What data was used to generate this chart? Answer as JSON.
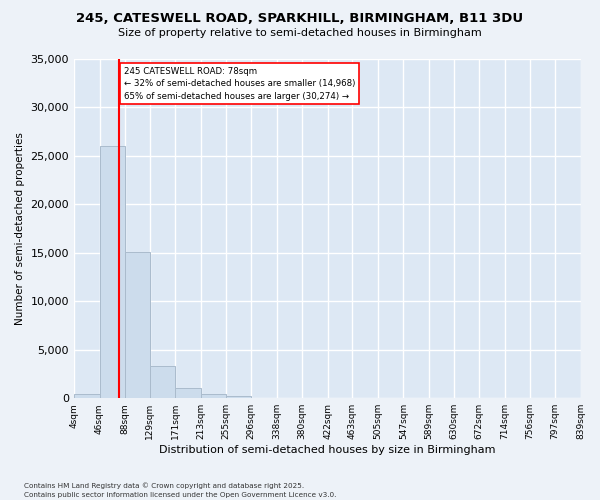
{
  "title_line1": "245, CATESWELL ROAD, SPARKHILL, BIRMINGHAM, B11 3DU",
  "title_line2": "Size of property relative to semi-detached houses in Birmingham",
  "xlabel": "Distribution of semi-detached houses by size in Birmingham",
  "ylabel": "Number of semi-detached properties",
  "bar_color": "#ccdcec",
  "bar_edge_color": "#aabbcc",
  "background_color": "#dde8f4",
  "grid_color": "#ffffff",
  "property_line_x": 78,
  "annotation_text_line1": "245 CATESWELL ROAD: 78sqm",
  "annotation_text_line2": "← 32% of semi-detached houses are smaller (14,968)",
  "annotation_text_line3": "65% of semi-detached houses are larger (30,274) →",
  "footnote1": "Contains HM Land Registry data © Crown copyright and database right 2025.",
  "footnote2": "Contains public sector information licensed under the Open Government Licence v3.0.",
  "bins": [
    4,
    46,
    88,
    129,
    171,
    213,
    255,
    296,
    338,
    380,
    422,
    463,
    505,
    547,
    589,
    630,
    672,
    714,
    756,
    797,
    839
  ],
  "bin_labels": [
    "4sqm",
    "46sqm",
    "88sqm",
    "129sqm",
    "171sqm",
    "213sqm",
    "255sqm",
    "296sqm",
    "338sqm",
    "380sqm",
    "422sqm",
    "463sqm",
    "505sqm",
    "547sqm",
    "589sqm",
    "630sqm",
    "672sqm",
    "714sqm",
    "756sqm",
    "797sqm",
    "839sqm"
  ],
  "counts": [
    400,
    26000,
    15100,
    3300,
    1050,
    450,
    200,
    50,
    10,
    5,
    2,
    0,
    0,
    0,
    0,
    0,
    0,
    0,
    0,
    0
  ],
  "ylim": [
    0,
    35000
  ],
  "yticks": [
    0,
    5000,
    10000,
    15000,
    20000,
    25000,
    30000,
    35000
  ]
}
